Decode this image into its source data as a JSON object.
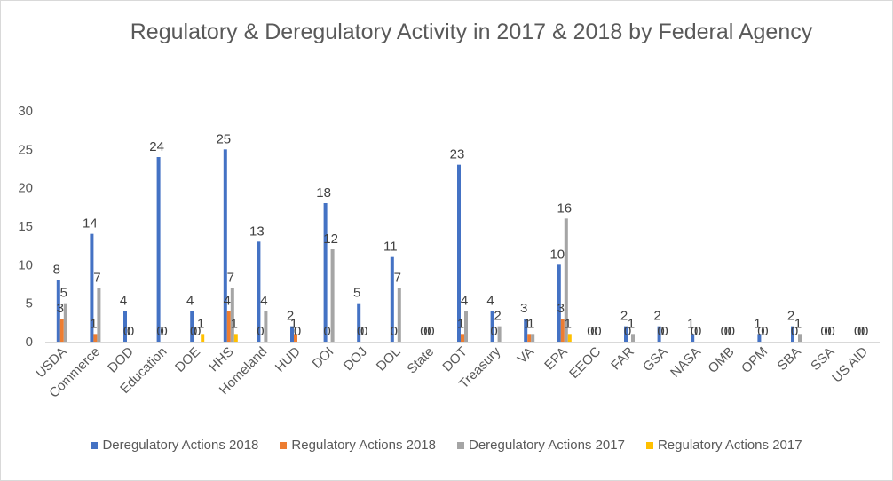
{
  "chart_data": {
    "type": "bar",
    "title": "Regulatory & Deregulatory Activity in 2017 & 2018 by Federal Agency",
    "xlabel": "",
    "ylabel": "",
    "ylim": [
      0,
      30
    ],
    "yticks": [
      0,
      5,
      10,
      15,
      20,
      25,
      30
    ],
    "grid": false,
    "legend_position": "bottom",
    "categories": [
      "USDA",
      "Commerce",
      "DOD",
      "Education",
      "DOE",
      "HHS",
      "Homeland",
      "HUD",
      "DOI",
      "DOJ",
      "DOL",
      "State",
      "DOT",
      "Treasury",
      "VA",
      "EPA",
      "EEOC",
      "FAR",
      "GSA",
      "NASA",
      "OMB",
      "OPM",
      "SBA",
      "SSA",
      "US AID"
    ],
    "series": [
      {
        "name": "Deregulatory Actions 2018",
        "color": "#4472c4",
        "values": [
          8,
          14,
          4,
          24,
          4,
          25,
          13,
          2,
          18,
          5,
          11,
          0,
          23,
          4,
          3,
          10,
          0,
          2,
          2,
          1,
          0,
          1,
          2,
          0,
          0
        ]
      },
      {
        "name": "Regulatory Actions 2018",
        "color": "#ed7d31",
        "values": [
          3,
          1,
          0,
          0,
          0,
          4,
          0,
          1,
          0,
          0,
          0,
          0,
          1,
          0,
          1,
          3,
          0,
          0,
          0,
          0,
          0,
          0,
          0,
          0,
          0
        ]
      },
      {
        "name": "Deregulatory Actions 2017",
        "color": "#a5a5a5",
        "values": [
          5,
          7,
          0,
          0,
          0,
          7,
          4,
          0,
          12,
          0,
          7,
          0,
          4,
          2,
          1,
          16,
          0,
          1,
          0,
          0,
          0,
          0,
          1,
          0,
          0
        ]
      },
      {
        "name": "Regulatory Actions 2017",
        "color": "#ffc000",
        "values": [
          0,
          0,
          0,
          0,
          1,
          1,
          0,
          0,
          0,
          0,
          0,
          0,
          0,
          0,
          0,
          1,
          0,
          0,
          0,
          0,
          0,
          0,
          0,
          0,
          0
        ]
      }
    ]
  }
}
